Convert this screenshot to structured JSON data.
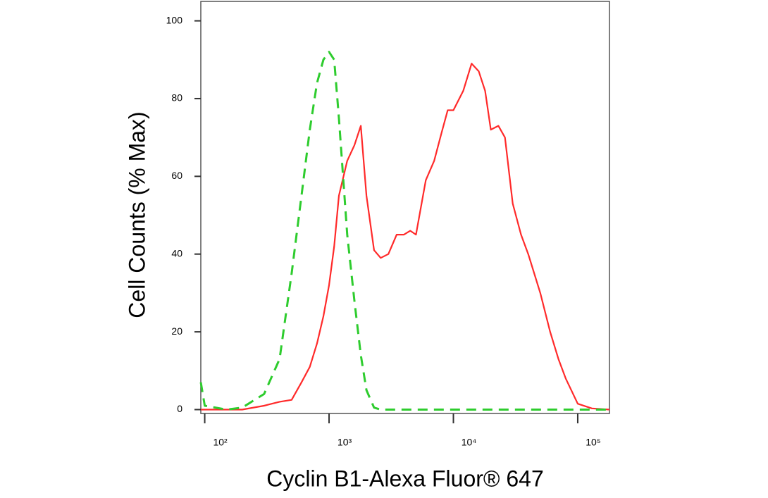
{
  "chart_data": {
    "type": "line",
    "x_label": "Cyclin B1-Alexa Fluor® 647",
    "y_label": "Cell Counts (% Max)",
    "xscale": "log",
    "x": [
      93,
      100,
      150,
      200,
      300,
      400,
      500,
      600,
      700,
      800,
      900,
      1000,
      1100,
      1200,
      1400,
      1600,
      1800,
      2000,
      2300,
      2600,
      3000,
      3500,
      4000,
      4500,
      5000,
      6000,
      7000,
      8000,
      9000,
      10000,
      12000,
      14000,
      16000,
      18000,
      20000,
      23000,
      26000,
      30000,
      35000,
      40000,
      50000,
      60000,
      70000,
      80000,
      100000,
      130000,
      180000
    ],
    "series": [
      {
        "color": "#ff2a2a",
        "linestyle": "solid",
        "values": [
          0,
          0,
          0,
          0,
          1,
          2,
          2.5,
          7,
          11,
          17,
          24,
          32,
          42,
          55,
          64,
          68,
          73,
          55,
          41,
          39,
          40,
          45,
          45,
          46,
          45,
          59,
          64,
          71,
          77,
          77,
          82,
          89,
          87,
          82,
          72,
          73,
          70,
          53,
          45,
          40,
          30,
          20,
          13,
          8,
          1.5,
          0.3,
          0
        ]
      },
      {
        "color": "#2ecc2e",
        "linestyle": "dashed",
        "values": [
          7,
          1,
          0,
          0.5,
          4,
          13,
          35,
          55,
          72,
          84,
          90,
          92,
          90,
          75,
          45,
          28,
          14,
          5,
          0.5,
          0,
          0,
          0,
          0,
          0,
          0,
          0,
          0,
          0,
          0,
          0,
          0,
          0,
          0,
          0,
          0,
          0,
          0,
          0,
          0,
          0,
          0,
          0,
          0,
          0,
          0,
          0,
          0
        ]
      }
    ],
    "xlim": [
      93,
      180000
    ],
    "xticks": [
      {
        "value": 100,
        "label": "10²"
      },
      {
        "value": 1000,
        "label": "10³"
      },
      {
        "value": 10000,
        "label": "10⁴"
      },
      {
        "value": 100000,
        "label": "10⁵"
      }
    ],
    "ylim": [
      -1,
      105
    ],
    "yticks": [
      0,
      20,
      40,
      60,
      80,
      100
    ]
  }
}
